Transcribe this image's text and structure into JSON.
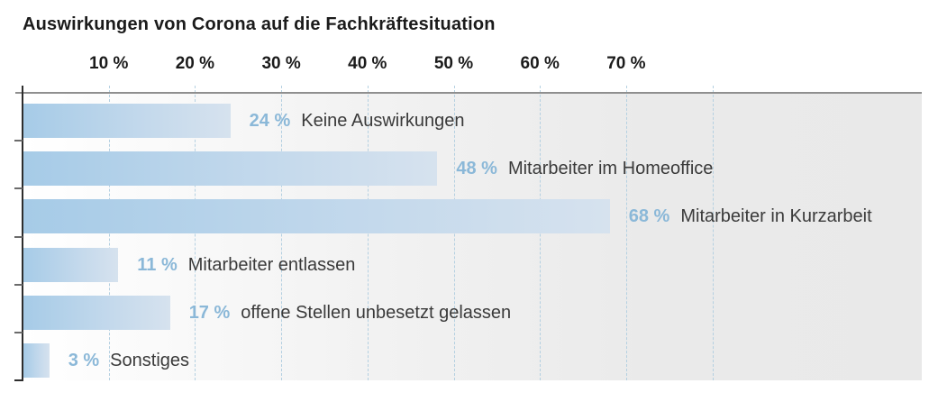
{
  "chart_data": {
    "type": "bar",
    "orientation": "horizontal",
    "title": "Auswirkungen von Corona auf die Fachkräftesituation",
    "unit": "%",
    "categories": [
      "Keine Auswirkungen",
      "Mitarbeiter im Homeoffice",
      "Mitarbeiter in Kurzarbeit",
      "Mitarbeiter entlassen",
      "offene Stellen unbesetzt gelassen",
      "Sonstiges"
    ],
    "values": [
      24,
      48,
      68,
      11,
      17,
      3
    ],
    "rows": [
      {
        "value": 24,
        "pct_label": "24 %",
        "label": "Keine Auswirkungen"
      },
      {
        "value": 48,
        "pct_label": "48 %",
        "label": "Mitarbeiter im Homeoffice"
      },
      {
        "value": 68,
        "pct_label": "68 %",
        "label": "Mitarbeiter in Kurzarbeit"
      },
      {
        "value": 11,
        "pct_label": "11 %",
        "label": "Mitarbeiter entlassen"
      },
      {
        "value": 17,
        "pct_label": "17 %",
        "label": "offene Stellen unbesetzt gelassen"
      },
      {
        "value": 3,
        "pct_label": "3 %",
        "label": "Sonstiges"
      }
    ],
    "x_ticks": [
      {
        "pct": 10,
        "label": "10 %"
      },
      {
        "pct": 20,
        "label": "20 %"
      },
      {
        "pct": 30,
        "label": "30 %"
      },
      {
        "pct": 40,
        "label": "40 %"
      },
      {
        "pct": 50,
        "label": "50 %"
      },
      {
        "pct": 60,
        "label": "60 %"
      },
      {
        "pct": 70,
        "label": "70 %"
      }
    ],
    "gridlines_pct": [
      10,
      20,
      30,
      40,
      50,
      60,
      70,
      80
    ],
    "xlim": [
      0,
      104
    ],
    "grid": "dashed-vertical",
    "legend": "none",
    "colors": {
      "bar_gradient_start": "#a6cbe7",
      "bar_gradient_end": "#d6e2ee",
      "value_text": "#8bb8d8",
      "category_text": "#3a3a3a",
      "axis_text": "#1b1b1b",
      "gridline": "#b4d0e1",
      "plot_bg_start": "#ffffff",
      "plot_bg_end": "#e9e9e9",
      "axis_line": "#2d2d2d",
      "top_border": "#8f8f8f"
    }
  }
}
